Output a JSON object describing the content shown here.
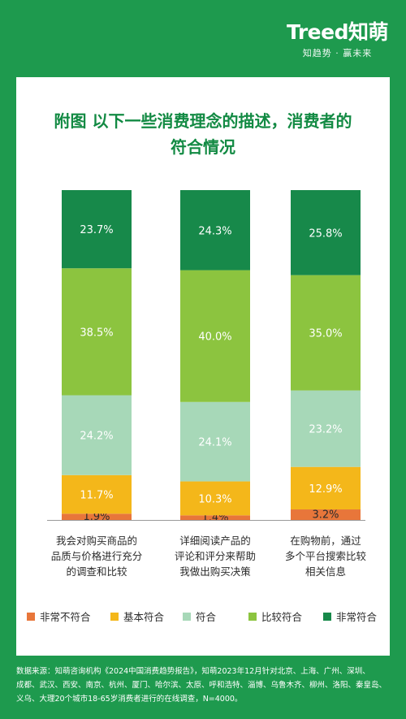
{
  "brand": {
    "logo": "Treed知萌",
    "slogan": "知趋势 · 赢未来"
  },
  "title_lines": [
    "附图  以下一些消费理念的描述，消费者的",
    "符合情况"
  ],
  "chart_data": {
    "type": "bar",
    "stacked": true,
    "normalized": true,
    "title": "附图  以下一些消费理念的描述，消费者的符合情况",
    "categories": [
      [
        "我会对购买商品的",
        "品质与价格进行充分",
        "的调查和比较"
      ],
      [
        "详细阅读产品的",
        "评论和评分来帮助",
        "我做出购买决策"
      ],
      [
        "在购物前，通过",
        "多个平台搜索比较",
        "相关信息"
      ]
    ],
    "series": [
      {
        "name": "非常不符合",
        "color": "#e8763a",
        "values": [
          1.9,
          1.4,
          3.2
        ]
      },
      {
        "name": "基本符合",
        "color": "#f4b71a",
        "values": [
          11.7,
          10.3,
          12.9
        ]
      },
      {
        "name": "符合",
        "color": "#a7d8b8",
        "values": [
          24.2,
          24.1,
          23.2
        ]
      },
      {
        "name": "比较符合",
        "color": "#8cc43f",
        "values": [
          38.5,
          40.0,
          35.0
        ]
      },
      {
        "name": "非常符合",
        "color": "#17894a",
        "values": [
          23.7,
          24.3,
          25.8
        ]
      }
    ],
    "labels": [
      [
        "1.9%",
        "1.4%",
        "3.2%"
      ],
      [
        "11.7%",
        "10.3%",
        "12.9%"
      ],
      [
        "24.2%",
        "24.1%",
        "23.2%"
      ],
      [
        "38.5%",
        "40.0%",
        "35.0%"
      ],
      [
        "23.7%",
        "24.3%",
        "25.8%"
      ]
    ],
    "legend_position": "bottom",
    "grid": false,
    "ylim": [
      0,
      100
    ]
  },
  "footer": {
    "lines": [
      "数据来源：知萌咨询机构《2024中国消费趋势报告》，知萌2023年12月针对北京、上海、广州、深圳、",
      "成都、武汉、西安、南京、杭州、厦门、哈尔滨、太原、呼和浩特、淄博、乌鲁木齐、柳州、洛阳、秦皇岛、",
      "义乌、大理20个城市18-65岁消费者进行的在线调查，N=4000。"
    ]
  }
}
